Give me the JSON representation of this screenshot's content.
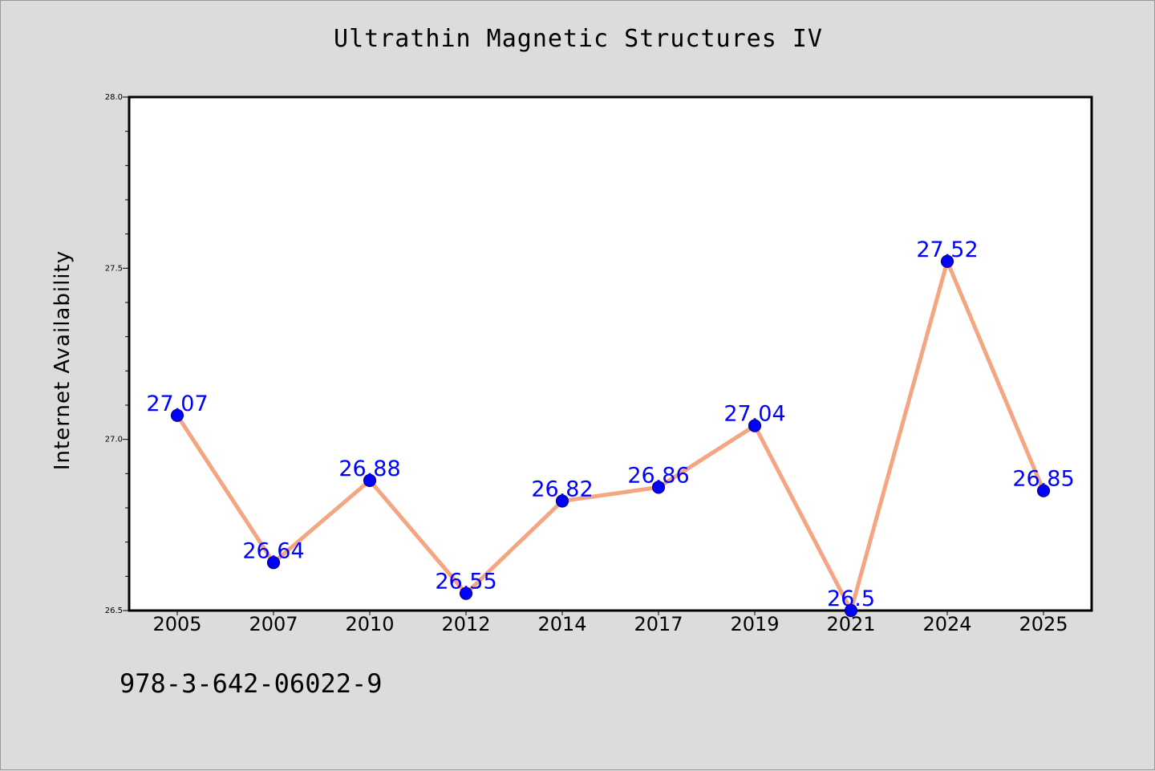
{
  "chart_data": {
    "type": "line",
    "title": "Ultrathin Magnetic Structures IV",
    "xlabel": "",
    "ylabel": "Internet Availability",
    "categories": [
      "2005",
      "2007",
      "2010",
      "2012",
      "2014",
      "2017",
      "2019",
      "2021",
      "2024",
      "2025"
    ],
    "values": [
      27.07,
      26.64,
      26.88,
      26.55,
      26.82,
      26.86,
      27.04,
      26.5,
      27.52,
      26.85
    ],
    "data_labels": [
      "27.07",
      "26.64",
      "26.88",
      "26.55",
      "26.82",
      "26.86",
      "27.04",
      "26.5",
      "27.52",
      "26.85"
    ],
    "ylim": [
      26.5,
      28.0
    ],
    "yticks": [
      "26.5",
      "27.0",
      "27.5",
      "28.0"
    ],
    "grid": false,
    "colors": {
      "line": "#f4a582",
      "marker": "#0000ff",
      "label": "#0000ff",
      "background": "#dcdcdc",
      "plot_background": "#ffffff"
    }
  },
  "footer": {
    "isbn": "978-3-642-06022-9"
  }
}
